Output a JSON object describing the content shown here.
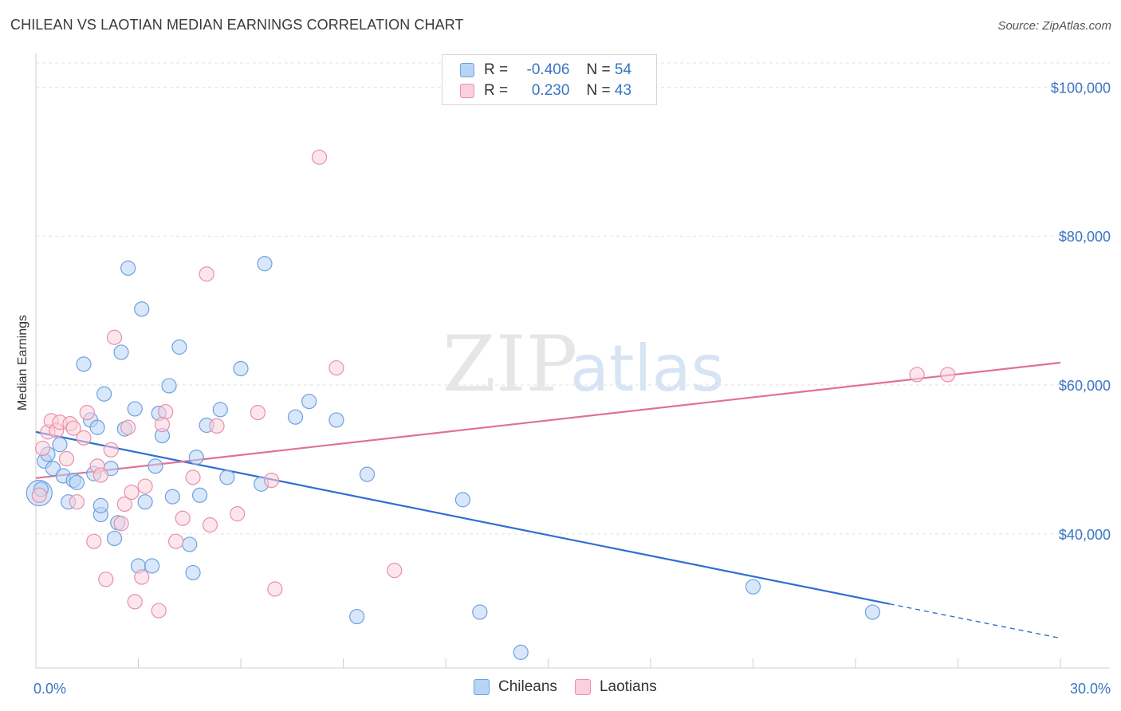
{
  "title": "CHILEAN VS LAOTIAN MEDIAN EARNINGS CORRELATION CHART",
  "source": "Source: ZipAtlas.com",
  "watermark": {
    "zip": "ZIP",
    "atlas": "atlas"
  },
  "legend_stats": [
    {
      "r_label": "R =",
      "r_value": "-0.406",
      "n_label": "N =",
      "n_value": "54",
      "color": "#a8c8f0",
      "border": "#6fa0e0"
    },
    {
      "r_label": "R =",
      "r_value": "0.230",
      "n_label": "N =",
      "n_value": "43",
      "color": "#f8c0d0",
      "border": "#e890aa"
    }
  ],
  "bottom_legend": [
    {
      "label": "Chileans",
      "color": "#b8d4f4",
      "border": "#6fa0e0"
    },
    {
      "label": "Laotians",
      "color": "#fbd0dc",
      "border": "#e890aa"
    }
  ],
  "chart_data": {
    "type": "scatter",
    "title": "CHILEAN VS LAOTIAN MEDIAN EARNINGS CORRELATION CHART",
    "xlabel": "",
    "ylabel": "Median Earnings",
    "xlim": [
      0,
      30
    ],
    "ylim": [
      22000,
      104000
    ],
    "x_tick_labels": [
      "0.0%",
      "30.0%"
    ],
    "y_ticks": [
      {
        "value": 100000,
        "label": "$100,000"
      },
      {
        "value": 80000,
        "label": "$80,000"
      },
      {
        "value": 60000,
        "label": "$60,000"
      },
      {
        "value": 40000,
        "label": "$40,000"
      }
    ],
    "grid": true,
    "legend_position": "top-center",
    "series": [
      {
        "name": "Chileans",
        "color": "#6fa0e0",
        "fill": "#b8d4f4",
        "trend": {
          "x0": 0,
          "y0": 53700,
          "x1": 25,
          "y1": 30600,
          "dash_to_x": 30,
          "dash_to_y": 26000,
          "color": "#2f6fd0"
        },
        "points": [
          [
            0.1,
            45500,
            16
          ],
          [
            0.25,
            49800,
            9
          ],
          [
            0.35,
            50700,
            9
          ],
          [
            0.5,
            48800,
            9
          ],
          [
            0.7,
            52000,
            9
          ],
          [
            0.8,
            47800,
            9
          ],
          [
            0.95,
            44300,
            9
          ],
          [
            1.1,
            47200,
            9
          ],
          [
            1.2,
            46900,
            9
          ],
          [
            1.4,
            62800,
            9
          ],
          [
            1.6,
            55300,
            9
          ],
          [
            1.7,
            48100,
            9
          ],
          [
            1.8,
            54300,
            9
          ],
          [
            1.9,
            42600,
            9
          ],
          [
            1.9,
            43800,
            9
          ],
          [
            2.0,
            58800,
            9
          ],
          [
            2.2,
            48800,
            9
          ],
          [
            2.3,
            39400,
            9
          ],
          [
            2.4,
            41500,
            9
          ],
          [
            2.5,
            64400,
            9
          ],
          [
            2.6,
            54100,
            9
          ],
          [
            2.7,
            75700,
            9
          ],
          [
            2.9,
            56800,
            9
          ],
          [
            3.0,
            35700,
            9
          ],
          [
            3.1,
            70200,
            9
          ],
          [
            3.2,
            44300,
            9
          ],
          [
            3.4,
            35700,
            9
          ],
          [
            3.5,
            49100,
            9
          ],
          [
            3.6,
            56200,
            9
          ],
          [
            3.7,
            53200,
            9
          ],
          [
            3.9,
            59900,
            9
          ],
          [
            4.0,
            45000,
            9
          ],
          [
            4.2,
            65100,
            9
          ],
          [
            4.5,
            38600,
            9
          ],
          [
            4.6,
            34800,
            9
          ],
          [
            4.7,
            50300,
            9
          ],
          [
            4.8,
            45200,
            9
          ],
          [
            5.0,
            54600,
            9
          ],
          [
            5.4,
            56700,
            9
          ],
          [
            5.6,
            47600,
            9
          ],
          [
            6.0,
            62200,
            9
          ],
          [
            6.6,
            46700,
            9
          ],
          [
            6.7,
            76300,
            9
          ],
          [
            7.6,
            55700,
            9
          ],
          [
            8.0,
            57800,
            9
          ],
          [
            8.8,
            55300,
            9
          ],
          [
            9.4,
            28900,
            9
          ],
          [
            9.7,
            48000,
            9
          ],
          [
            12.5,
            44600,
            9
          ],
          [
            13.0,
            29500,
            9
          ],
          [
            14.2,
            24100,
            9
          ],
          [
            21.0,
            32900,
            9
          ],
          [
            24.5,
            29500,
            9
          ],
          [
            0.15,
            46000,
            9
          ]
        ]
      },
      {
        "name": "Laotians",
        "color": "#e890aa",
        "fill": "#fbd0dc",
        "trend": {
          "x0": 0,
          "y0": 47500,
          "x1": 30,
          "y1": 63000,
          "color": "#e0709a"
        },
        "points": [
          [
            0.2,
            51500,
            9
          ],
          [
            0.35,
            53700,
            9
          ],
          [
            0.45,
            55200,
            9
          ],
          [
            0.6,
            53900,
            9
          ],
          [
            0.7,
            55000,
            9
          ],
          [
            0.9,
            50100,
            9
          ],
          [
            1.0,
            54800,
            9
          ],
          [
            1.1,
            54200,
            9
          ],
          [
            1.2,
            44300,
            9
          ],
          [
            1.4,
            52900,
            9
          ],
          [
            1.5,
            56300,
            9
          ],
          [
            1.7,
            39000,
            9
          ],
          [
            1.8,
            49100,
            9
          ],
          [
            1.9,
            47900,
            9
          ],
          [
            2.05,
            33900,
            9
          ],
          [
            2.2,
            51300,
            9
          ],
          [
            2.3,
            66400,
            9
          ],
          [
            2.5,
            41400,
            9
          ],
          [
            2.6,
            44000,
            9
          ],
          [
            2.7,
            54300,
            9
          ],
          [
            2.8,
            45600,
            9
          ],
          [
            2.9,
            30900,
            9
          ],
          [
            3.1,
            34200,
            9
          ],
          [
            3.2,
            46400,
            9
          ],
          [
            3.6,
            29700,
            9
          ],
          [
            3.8,
            56400,
            9
          ],
          [
            3.7,
            54700,
            9
          ],
          [
            4.1,
            39000,
            9
          ],
          [
            4.3,
            42100,
            9
          ],
          [
            4.6,
            47600,
            9
          ],
          [
            5.0,
            74900,
            9
          ],
          [
            5.1,
            41200,
            9
          ],
          [
            5.3,
            54500,
            9
          ],
          [
            5.9,
            42700,
            9
          ],
          [
            6.5,
            56300,
            9
          ],
          [
            6.9,
            47200,
            9
          ],
          [
            7.0,
            32600,
            9
          ],
          [
            8.3,
            90600,
            9
          ],
          [
            8.8,
            62300,
            9
          ],
          [
            10.5,
            35100,
            9
          ],
          [
            25.8,
            61400,
            9
          ],
          [
            26.7,
            61400,
            9
          ],
          [
            0.1,
            45200,
            9
          ]
        ]
      }
    ]
  }
}
